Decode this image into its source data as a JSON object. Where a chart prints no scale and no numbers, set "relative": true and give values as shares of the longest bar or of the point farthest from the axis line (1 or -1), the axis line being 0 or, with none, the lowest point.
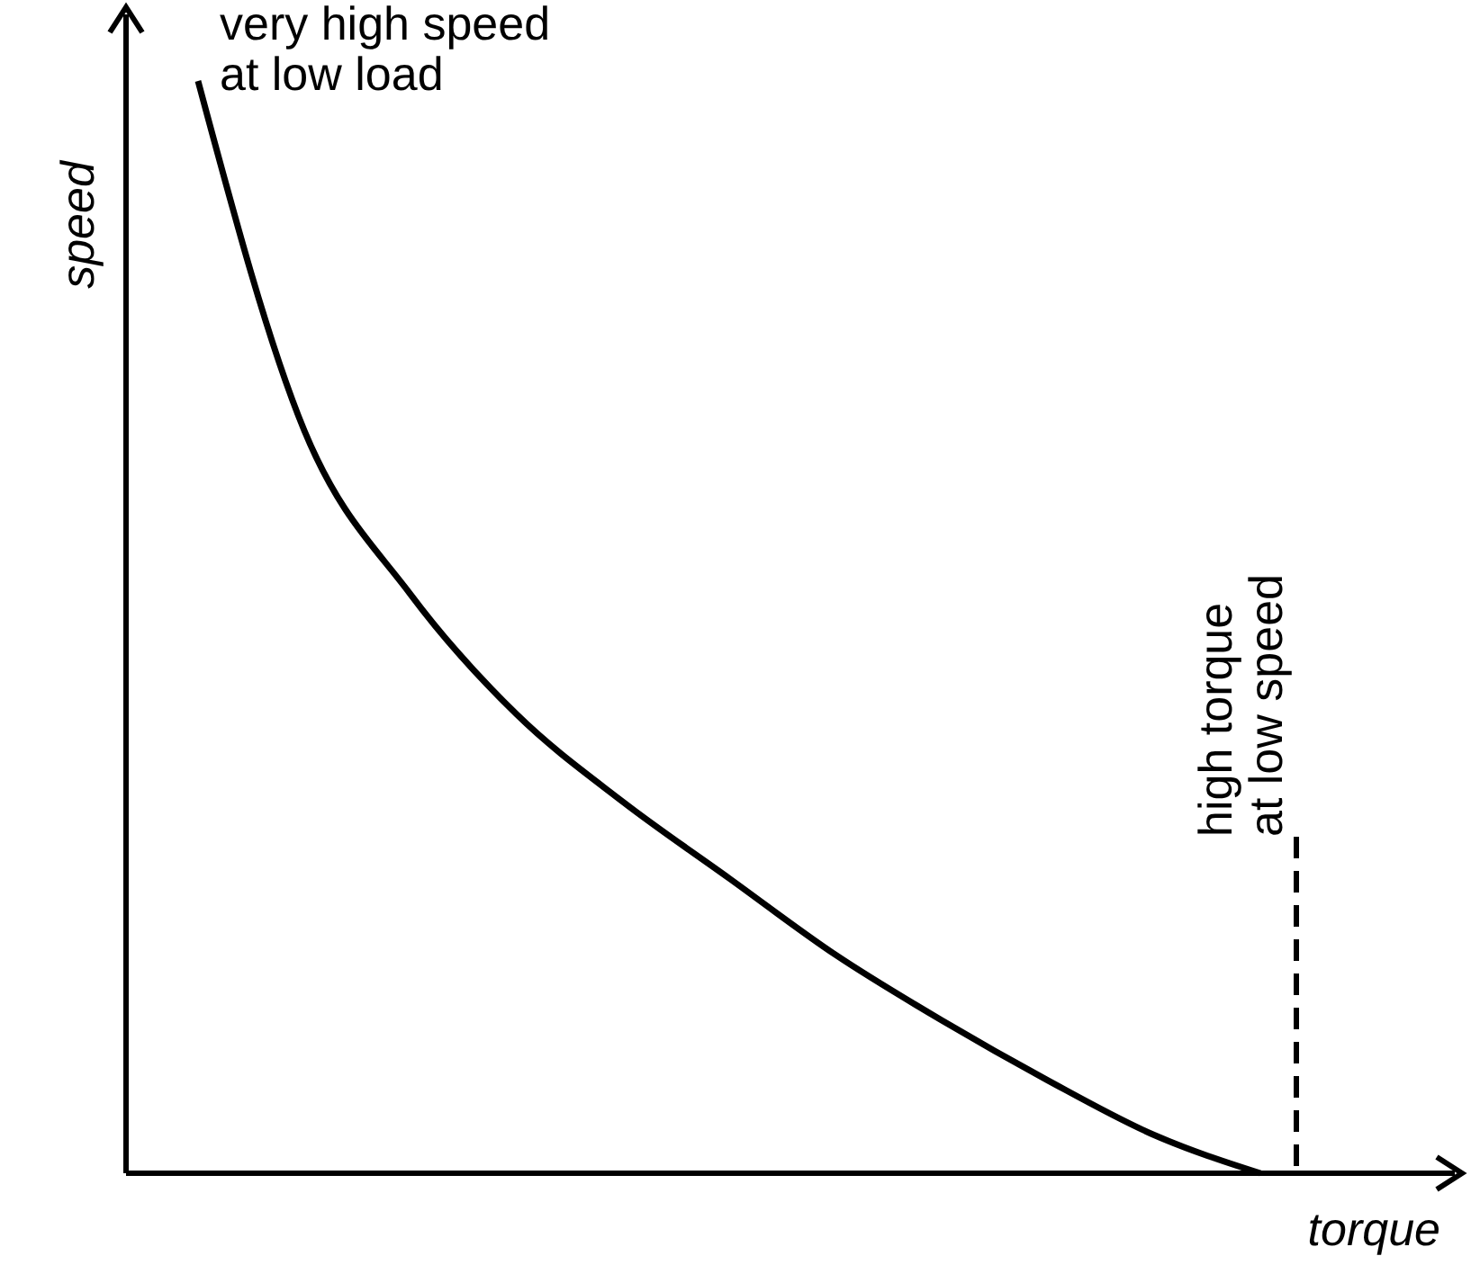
{
  "chart_data": {
    "type": "line",
    "relative": true,
    "xlabel": "torque",
    "ylabel": "speed",
    "categories": [
      null,
      null,
      null,
      null,
      null,
      null,
      null,
      null,
      null,
      null,
      null
    ],
    "series": [
      {
        "color": "#000000",
        "values": [
          1.0,
          0.68,
          0.53,
          0.42,
          0.34,
          0.27,
          0.2,
          0.14,
          0.085,
          0.035,
          0
        ]
      }
    ],
    "marker": "none",
    "line_style": "solid",
    "grid": false,
    "annotations": [
      "very high speed\nat low load",
      "high torque\nat low speed"
    ]
  }
}
